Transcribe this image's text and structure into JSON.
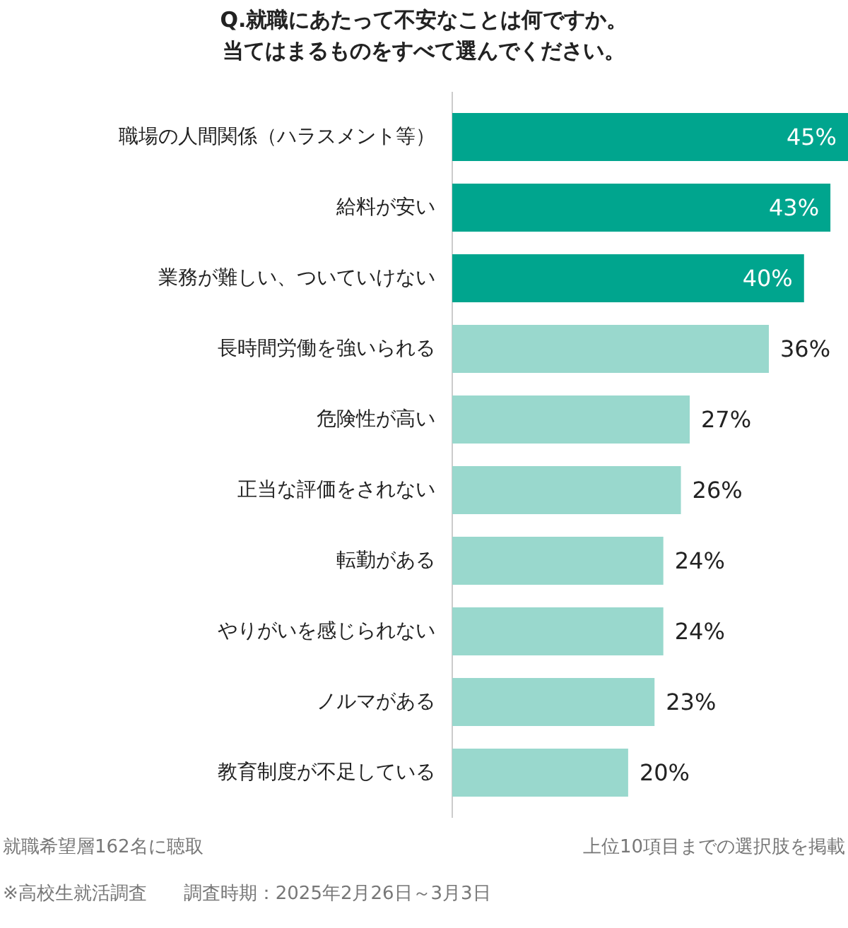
{
  "chart_data": {
    "type": "bar",
    "orientation": "horizontal",
    "title": "Q.就職にあたって不安なことは何ですか。当てはまるものをすべて選んでください。",
    "categories": [
      "職場の人間関係（ハラスメント等）",
      "給料が安い",
      "業務が難しい、ついていけない",
      "長時間労働を強いられる",
      "危険性が高い",
      "正当な評価をされない",
      "転勤がある",
      "やりがいを感じられない",
      "ノルマがある",
      "教育制度が不足している"
    ],
    "values": [
      45,
      43,
      40,
      36,
      27,
      26,
      24,
      24,
      23,
      20
    ],
    "value_labels": [
      "45%",
      "43%",
      "40%",
      "36%",
      "27%",
      "26%",
      "24%",
      "24%",
      "23%",
      "20%"
    ],
    "colors": [
      "#00a58e",
      "#00a58e",
      "#00a58e",
      "#99d8cd",
      "#99d8cd",
      "#99d8cd",
      "#99d8cd",
      "#99d8cd",
      "#99d8cd",
      "#99d8cd"
    ],
    "annotations": [
      "就職希望層162名に聴取",
      "上位10項目までの選択肢を掲載",
      "※高校生就活調査　　調査時期：2025年2月26日～3月3日"
    ]
  }
}
